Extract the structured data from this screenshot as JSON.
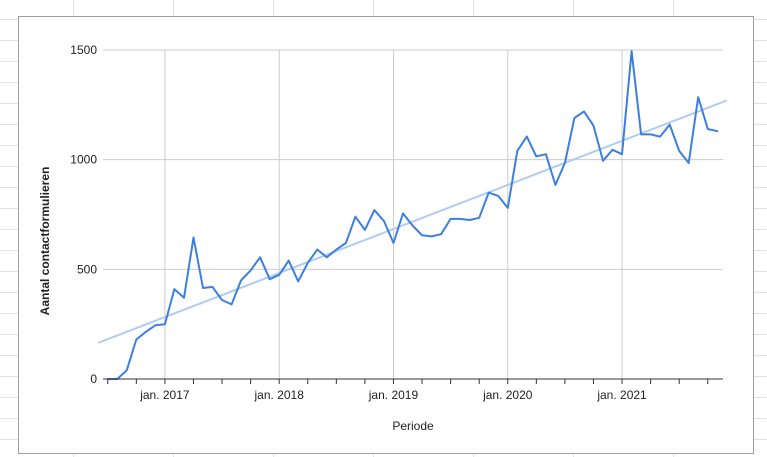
{
  "chart_data": {
    "type": "line",
    "title": "",
    "xlabel": "Periode",
    "ylabel": "Aantal contactformulieren",
    "ylim": [
      0,
      1500
    ],
    "y_ticks": [
      "0",
      "500",
      "1000",
      "1500"
    ],
    "x_ticks": [
      "jan. 2017",
      "jan. 2018",
      "jan. 2019",
      "jan. 2020",
      "jan. 2021"
    ],
    "grid": true,
    "legend": "none",
    "series": [
      {
        "x": [
          "2016-07",
          "2016-08",
          "2016-09",
          "2016-10",
          "2016-11",
          "2016-12",
          "2017-01",
          "2017-02",
          "2017-03",
          "2017-04",
          "2017-05",
          "2017-06",
          "2017-07",
          "2017-08",
          "2017-09",
          "2017-10",
          "2017-11",
          "2017-12",
          "2018-01",
          "2018-02",
          "2018-03",
          "2018-04",
          "2018-05",
          "2018-06",
          "2018-07",
          "2018-08",
          "2018-09",
          "2018-10",
          "2018-11",
          "2018-12",
          "2019-01",
          "2019-02",
          "2019-03",
          "2019-04",
          "2019-05",
          "2019-06",
          "2019-07",
          "2019-08",
          "2019-09",
          "2019-10",
          "2019-11",
          "2019-12",
          "2020-01",
          "2020-02",
          "2020-03",
          "2020-04",
          "2020-05",
          "2020-06",
          "2020-07",
          "2020-08",
          "2020-09",
          "2020-10",
          "2020-11",
          "2020-12",
          "2021-01",
          "2021-02",
          "2021-03",
          "2021-04",
          "2021-05",
          "2021-06",
          "2021-07",
          "2021-08",
          "2021-09",
          "2021-10",
          "2021-11"
        ],
        "values": [
          0,
          0,
          40,
          180,
          215,
          245,
          250,
          410,
          370,
          645,
          415,
          420,
          360,
          340,
          450,
          495,
          555,
          455,
          475,
          540,
          445,
          530,
          590,
          555,
          590,
          620,
          740,
          680,
          770,
          720,
          620,
          755,
          700,
          655,
          650,
          660,
          730,
          730,
          725,
          735,
          850,
          835,
          780,
          1040,
          1105,
          1015,
          1025,
          885,
          985,
          1190,
          1220,
          1155,
          995,
          1045,
          1025,
          1495,
          1115,
          1115,
          1105,
          1160,
          1040,
          985,
          1285,
          1140,
          1130
        ]
      }
    ],
    "trendline": {
      "x": [
        "2016-06",
        "2021-12"
      ],
      "values": [
        165,
        1270
      ]
    },
    "colors": {
      "line": "#3d7fe0",
      "trendline": "#b0ccf4",
      "grid": "#cccccc",
      "axis": "#333333"
    }
  }
}
